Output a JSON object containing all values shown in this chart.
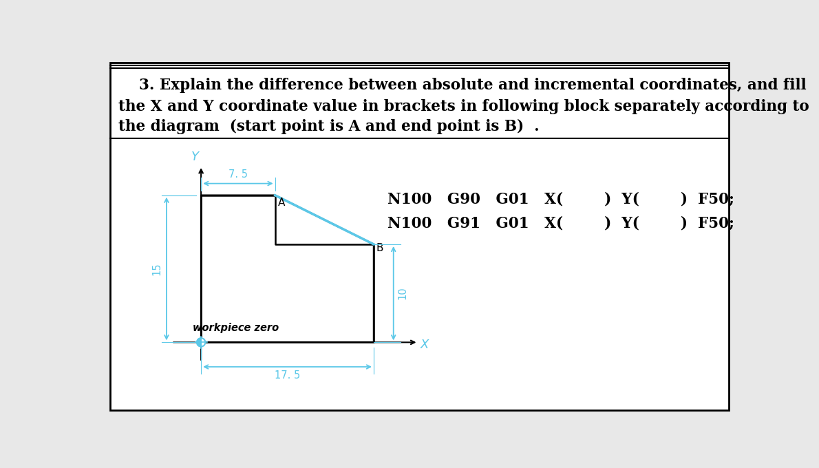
{
  "title_line1": "    3. Explain the difference between absolute and incremental coordinates, and fill",
  "title_line2": "the X and Y coordinate value in brackets in following block separately according to",
  "title_line3": "the diagram  (start point is A and end point is B)  .",
  "bg_color": "#e8e8e8",
  "border_color": "#000000",
  "diagram_color": "#000000",
  "line_AB_color": "#5bc8e8",
  "dim_color": "#5bc8e8",
  "workpiece_zero_label": "workpiece zero",
  "label_A": "A",
  "label_B": "B",
  "label_Y": "Y",
  "label_X": "X",
  "dim_75": "7. 5",
  "dim_175": "17. 5",
  "dim_15": "15",
  "dim_10": "10",
  "code_line1": "N100   G90   G01   X(        )  Y(        )  F50;",
  "code_line2": "N100   G91   G01   X(        )  Y(        )  F50;",
  "title_fontsize": 15.5,
  "code_fontsize": 15.5
}
